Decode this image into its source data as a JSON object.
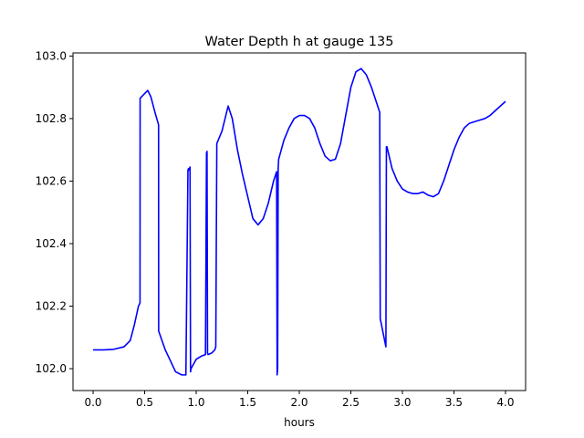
{
  "chart_data": {
    "type": "line",
    "title": "Water Depth h at gauge 135",
    "xlabel": "hours",
    "ylabel": "",
    "xlim": [
      -0.195,
      4.195
    ],
    "ylim": [
      101.93,
      103.01
    ],
    "x_ticks": [
      0.0,
      0.5,
      1.0,
      1.5,
      2.0,
      2.5,
      3.0,
      3.5,
      4.0
    ],
    "x_tick_labels": [
      "0.0",
      "0.5",
      "1.0",
      "1.5",
      "2.0",
      "2.5",
      "3.0",
      "3.5",
      "4.0"
    ],
    "y_ticks": [
      102.0,
      102.2,
      102.4,
      102.6,
      102.8,
      103.0
    ],
    "y_tick_labels": [
      "102.0",
      "102.2",
      "102.4",
      "102.6",
      "102.8",
      "103.0"
    ],
    "grid": false,
    "legend": "none",
    "series": [
      {
        "color": "#0000ff",
        "x": [
          0.0,
          0.1,
          0.2,
          0.3,
          0.36,
          0.4,
          0.44,
          0.455,
          0.456,
          0.5,
          0.53,
          0.56,
          0.6,
          0.635,
          0.636,
          0.7,
          0.8,
          0.86,
          0.9,
          0.92,
          0.925,
          0.93,
          0.94,
          0.945,
          0.95,
          1.0,
          1.05,
          1.09,
          1.1,
          1.105,
          1.11,
          1.115,
          1.15,
          1.18,
          1.19,
          1.2,
          1.25,
          1.28,
          1.31,
          1.35,
          1.4,
          1.45,
          1.5,
          1.55,
          1.6,
          1.65,
          1.7,
          1.75,
          1.78,
          1.785,
          1.79,
          1.795,
          1.8,
          1.85,
          1.9,
          1.95,
          2.0,
          2.05,
          2.1,
          2.15,
          2.2,
          2.25,
          2.3,
          2.35,
          2.4,
          2.45,
          2.5,
          2.55,
          2.6,
          2.65,
          2.7,
          2.75,
          2.78,
          2.785,
          2.84,
          2.845,
          2.85,
          2.9,
          2.95,
          3.0,
          3.05,
          3.1,
          3.15,
          3.2,
          3.25,
          3.3,
          3.35,
          3.4,
          3.45,
          3.5,
          3.55,
          3.6,
          3.65,
          3.7,
          3.75,
          3.8,
          3.85,
          3.9,
          3.95,
          4.0
        ],
        "y": [
          102.06,
          102.06,
          102.062,
          102.07,
          102.09,
          102.14,
          102.2,
          102.21,
          102.865,
          102.88,
          102.89,
          102.87,
          102.82,
          102.78,
          102.12,
          102.06,
          101.99,
          101.98,
          101.98,
          102.635,
          102.64,
          102.635,
          102.645,
          101.99,
          102.0,
          102.03,
          102.04,
          102.045,
          102.69,
          102.695,
          102.05,
          102.045,
          102.05,
          102.06,
          102.07,
          102.72,
          102.76,
          102.8,
          102.84,
          102.8,
          102.7,
          102.62,
          102.55,
          102.48,
          102.46,
          102.48,
          102.53,
          102.6,
          102.63,
          101.98,
          102.0,
          102.64,
          102.67,
          102.73,
          102.77,
          102.8,
          102.81,
          102.81,
          102.8,
          102.77,
          102.72,
          102.68,
          102.665,
          102.67,
          102.72,
          102.81,
          102.9,
          102.95,
          102.96,
          102.94,
          102.9,
          102.85,
          102.82,
          102.16,
          102.07,
          102.71,
          102.71,
          102.64,
          102.6,
          102.575,
          102.565,
          102.56,
          102.56,
          102.565,
          102.555,
          102.55,
          102.56,
          102.6,
          102.65,
          102.7,
          102.74,
          102.77,
          102.785,
          102.79,
          102.795,
          102.8,
          102.81,
          102.825,
          102.84,
          102.855
        ]
      }
    ]
  }
}
